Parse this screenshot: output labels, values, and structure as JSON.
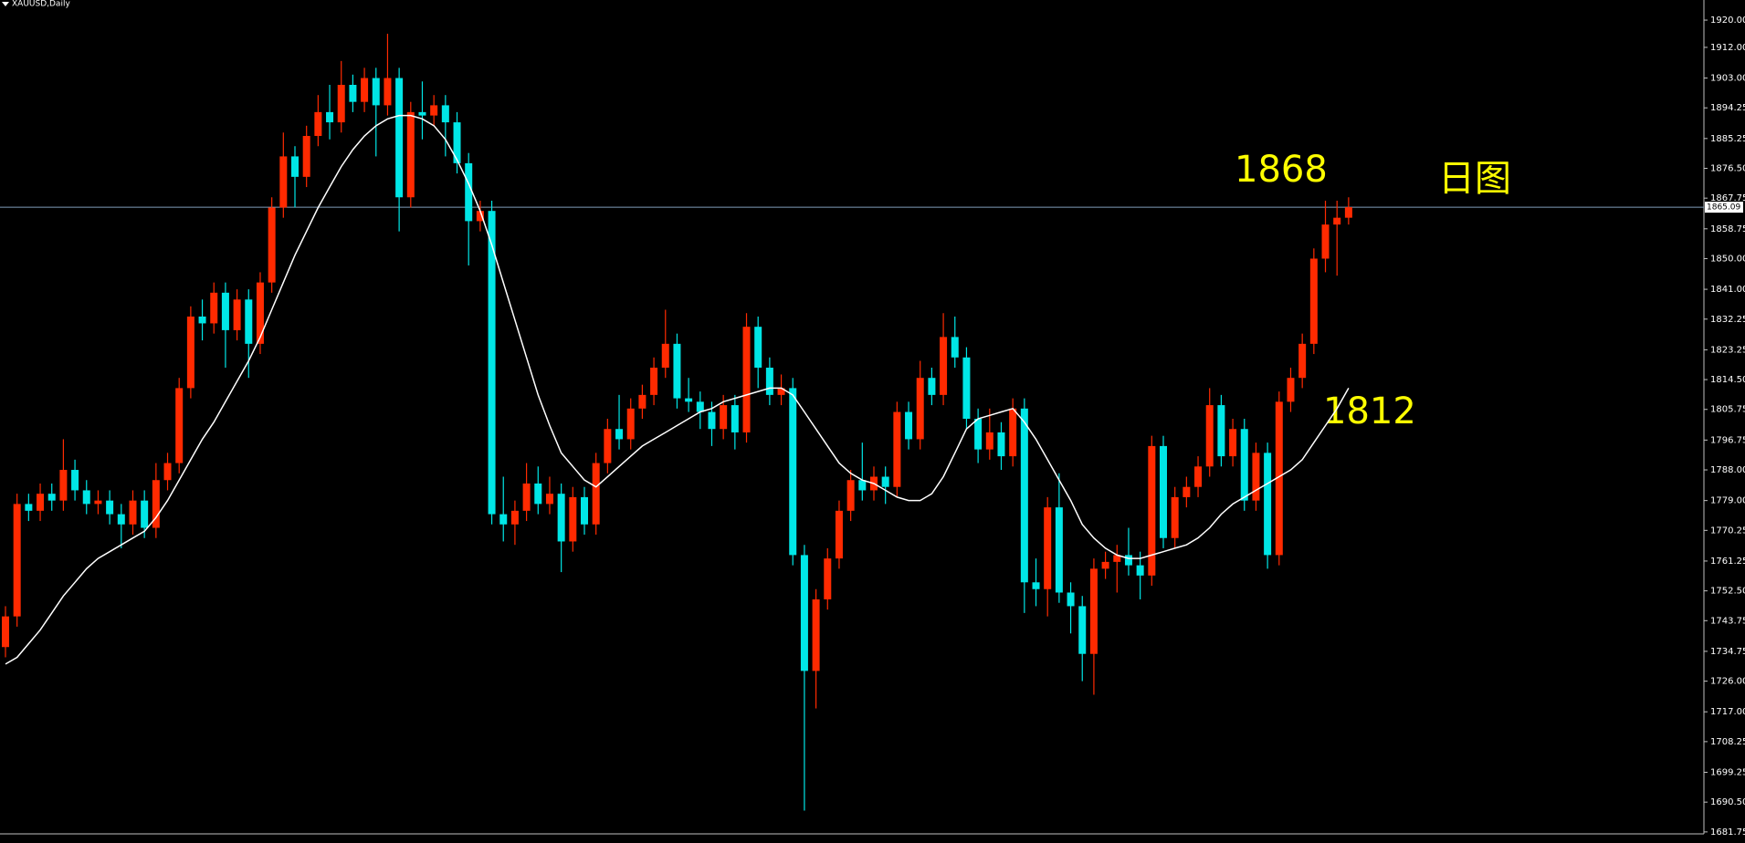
{
  "chart_data": {
    "type": "candlestick",
    "title": "XAUUSD,Daily",
    "up_color": "#ff2a00",
    "down_color": "#00e6e6",
    "ma_color": "#ffffff",
    "price_line_color": "#7f9db9",
    "ylim": [
      1678.5,
      1925.9
    ],
    "yticks": [
      {
        "value": 1920,
        "label": "1920.00"
      },
      {
        "value": 1912,
        "label": "1912.00"
      },
      {
        "value": 1903,
        "label": "1903.00"
      },
      {
        "value": 1894.25,
        "label": "1894.25"
      },
      {
        "value": 1885.25,
        "label": "1885.25"
      },
      {
        "value": 1876.5,
        "label": "1876.50"
      },
      {
        "value": 1867.75,
        "label": "1867.75"
      },
      {
        "value": 1858.75,
        "label": "1858.75"
      },
      {
        "value": 1850,
        "label": "1850.00"
      },
      {
        "value": 1841,
        "label": "1841.00"
      },
      {
        "value": 1832.25,
        "label": "1832.25"
      },
      {
        "value": 1823.25,
        "label": "1823.25"
      },
      {
        "value": 1814.5,
        "label": "1814.50"
      },
      {
        "value": 1805.75,
        "label": "1805.75"
      },
      {
        "value": 1796.75,
        "label": "1796.75"
      },
      {
        "value": 1788,
        "label": "1788.00"
      },
      {
        "value": 1779,
        "label": "1779.00"
      },
      {
        "value": 1770.25,
        "label": "1770.25"
      },
      {
        "value": 1761.25,
        "label": "1761.25"
      },
      {
        "value": 1752.5,
        "label": "1752.50"
      },
      {
        "value": 1743.75,
        "label": "1743.75"
      },
      {
        "value": 1734.75,
        "label": "1734.75"
      },
      {
        "value": 1726,
        "label": "1726.00"
      },
      {
        "value": 1717,
        "label": "1717.00"
      },
      {
        "value": 1708.25,
        "label": "1708.25"
      },
      {
        "value": 1699.25,
        "label": "1699.25"
      },
      {
        "value": 1690.5,
        "label": "1690.50"
      },
      {
        "value": 1681.75,
        "label": "1681.75"
      }
    ],
    "price_line": {
      "value": 1865.09,
      "label": "1865.09"
    },
    "annotations": [
      "1868",
      "1812",
      "日图"
    ],
    "open": [
      1736,
      1745,
      1778,
      1776,
      1781,
      1779,
      1788,
      1782,
      1778,
      1779,
      1775,
      1772,
      1779,
      1771,
      1785,
      1790,
      1812,
      1833,
      1831,
      1840,
      1829,
      1838,
      1825,
      1843,
      1865,
      1880,
      1874,
      1886,
      1893,
      1890,
      1901,
      1896,
      1903,
      1895,
      1903,
      1868,
      1893,
      1892,
      1895,
      1890,
      1878,
      1861,
      1864,
      1775,
      1772,
      1776,
      1784,
      1778,
      1781,
      1767,
      1780,
      1772,
      1790,
      1800,
      1797,
      1806,
      1810,
      1818,
      1825,
      1809,
      1808,
      1805,
      1800,
      1807,
      1799,
      1830,
      1818,
      1810,
      1812,
      1763,
      1729,
      1750,
      1762,
      1776,
      1785,
      1782,
      1786,
      1783,
      1805,
      1797,
      1815,
      1810,
      1827,
      1821,
      1803,
      1794,
      1799,
      1792,
      1806,
      1755,
      1753,
      1777,
      1752,
      1748,
      1734,
      1759,
      1761,
      1763,
      1760,
      1757,
      1795,
      1768,
      1780,
      1783,
      1789,
      1807,
      1792,
      1800,
      1779,
      1793,
      1763,
      1808,
      1815,
      1825,
      1850,
      1860,
      1862
    ],
    "high": [
      1748,
      1781,
      1781,
      1784,
      1784,
      1797,
      1791,
      1785,
      1782,
      1782,
      1778,
      1782,
      1782,
      1790,
      1793,
      1815,
      1836,
      1838,
      1843,
      1843,
      1841,
      1841,
      1846,
      1868,
      1887,
      1883,
      1889,
      1898,
      1901,
      1908,
      1904,
      1906,
      1906,
      1916,
      1906,
      1896,
      1902,
      1898,
      1898,
      1893,
      1881,
      1867,
      1867,
      1786,
      1779,
      1790,
      1789,
      1786,
      1784,
      1783,
      1783,
      1793,
      1803,
      1810,
      1809,
      1813,
      1821,
      1835,
      1828,
      1815,
      1811,
      1808,
      1810,
      1810,
      1834,
      1833,
      1821,
      1816,
      1815,
      1766,
      1753,
      1765,
      1779,
      1788,
      1796,
      1789,
      1789,
      1808,
      1808,
      1820,
      1818,
      1834,
      1833,
      1824,
      1806,
      1806,
      1802,
      1809,
      1809,
      1762,
      1780,
      1787,
      1755,
      1751,
      1762,
      1764,
      1766,
      1771,
      1764,
      1798,
      1798,
      1783,
      1786,
      1792,
      1812,
      1810,
      1803,
      1803,
      1796,
      1796,
      1811,
      1818,
      1828,
      1853,
      1867,
      1867,
      1868
    ],
    "low": [
      1733,
      1742,
      1773,
      1773,
      1776,
      1776,
      1779,
      1775,
      1775,
      1772,
      1765,
      1769,
      1768,
      1768,
      1782,
      1787,
      1809,
      1826,
      1828,
      1818,
      1826,
      1815,
      1822,
      1840,
      1862,
      1865,
      1871,
      1883,
      1885,
      1887,
      1893,
      1893,
      1880,
      1892,
      1858,
      1865,
      1885,
      1889,
      1880,
      1875,
      1848,
      1858,
      1772,
      1767,
      1766,
      1773,
      1775,
      1775,
      1758,
      1764,
      1769,
      1769,
      1787,
      1794,
      1794,
      1803,
      1807,
      1815,
      1806,
      1805,
      1800,
      1795,
      1797,
      1794,
      1796,
      1812,
      1807,
      1807,
      1760,
      1688,
      1718,
      1747,
      1759,
      1773,
      1779,
      1779,
      1778,
      1780,
      1794,
      1794,
      1807,
      1807,
      1818,
      1800,
      1790,
      1791,
      1788,
      1789,
      1746,
      1748,
      1745,
      1749,
      1740,
      1726,
      1722,
      1756,
      1752,
      1757,
      1750,
      1754,
      1765,
      1765,
      1777,
      1780,
      1786,
      1789,
      1789,
      1776,
      1776,
      1759,
      1760,
      1805,
      1812,
      1822,
      1846,
      1845,
      1860
    ],
    "close": [
      1745,
      1778,
      1776,
      1781,
      1779,
      1788,
      1782,
      1778,
      1779,
      1775,
      1772,
      1779,
      1771,
      1785,
      1790,
      1812,
      1833,
      1831,
      1840,
      1829,
      1838,
      1825,
      1843,
      1865,
      1880,
      1874,
      1886,
      1893,
      1890,
      1901,
      1896,
      1903,
      1895,
      1903,
      1868,
      1893,
      1892,
      1895,
      1890,
      1878,
      1861,
      1864,
      1775,
      1772,
      1776,
      1784,
      1778,
      1781,
      1767,
      1780,
      1772,
      1790,
      1800,
      1797,
      1806,
      1810,
      1818,
      1825,
      1809,
      1808,
      1805,
      1800,
      1807,
      1799,
      1830,
      1818,
      1810,
      1812,
      1763,
      1729,
      1750,
      1762,
      1776,
      1785,
      1782,
      1786,
      1783,
      1805,
      1797,
      1815,
      1810,
      1827,
      1821,
      1803,
      1794,
      1799,
      1792,
      1806,
      1755,
      1753,
      1777,
      1752,
      1748,
      1734,
      1759,
      1761,
      1763,
      1760,
      1757,
      1795,
      1768,
      1780,
      1783,
      1789,
      1807,
      1792,
      1800,
      1779,
      1793,
      1763,
      1808,
      1815,
      1825,
      1850,
      1860,
      1862,
      1865.09
    ],
    "ma": [
      1731,
      1733,
      1737,
      1741,
      1746,
      1751,
      1755,
      1759,
      1762,
      1764,
      1766,
      1768,
      1770,
      1774,
      1779,
      1785,
      1791,
      1797,
      1802,
      1808,
      1814,
      1820,
      1827,
      1835,
      1843,
      1851,
      1858,
      1865,
      1871,
      1877,
      1882,
      1886,
      1889,
      1891,
      1892,
      1892,
      1891,
      1889,
      1885,
      1879,
      1872,
      1864,
      1854,
      1843,
      1832,
      1821,
      1810,
      1801,
      1793,
      1789,
      1785,
      1783,
      1786,
      1789,
      1792,
      1795,
      1797,
      1799,
      1801,
      1803,
      1805,
      1806,
      1808,
      1809,
      1810,
      1811,
      1812,
      1812,
      1810,
      1805,
      1800,
      1795,
      1790,
      1787,
      1785,
      1784,
      1782,
      1780,
      1779,
      1779,
      1781,
      1786,
      1793,
      1800,
      1803,
      1804,
      1805,
      1806,
      1802,
      1797,
      1791,
      1785,
      1779,
      1772,
      1768,
      1765,
      1763,
      1762,
      1762,
      1763,
      1764,
      1765,
      1766,
      1768,
      1771,
      1775,
      1778,
      1780,
      1782,
      1784,
      1786,
      1788,
      1791,
      1796,
      1801,
      1806,
      1812
    ]
  }
}
